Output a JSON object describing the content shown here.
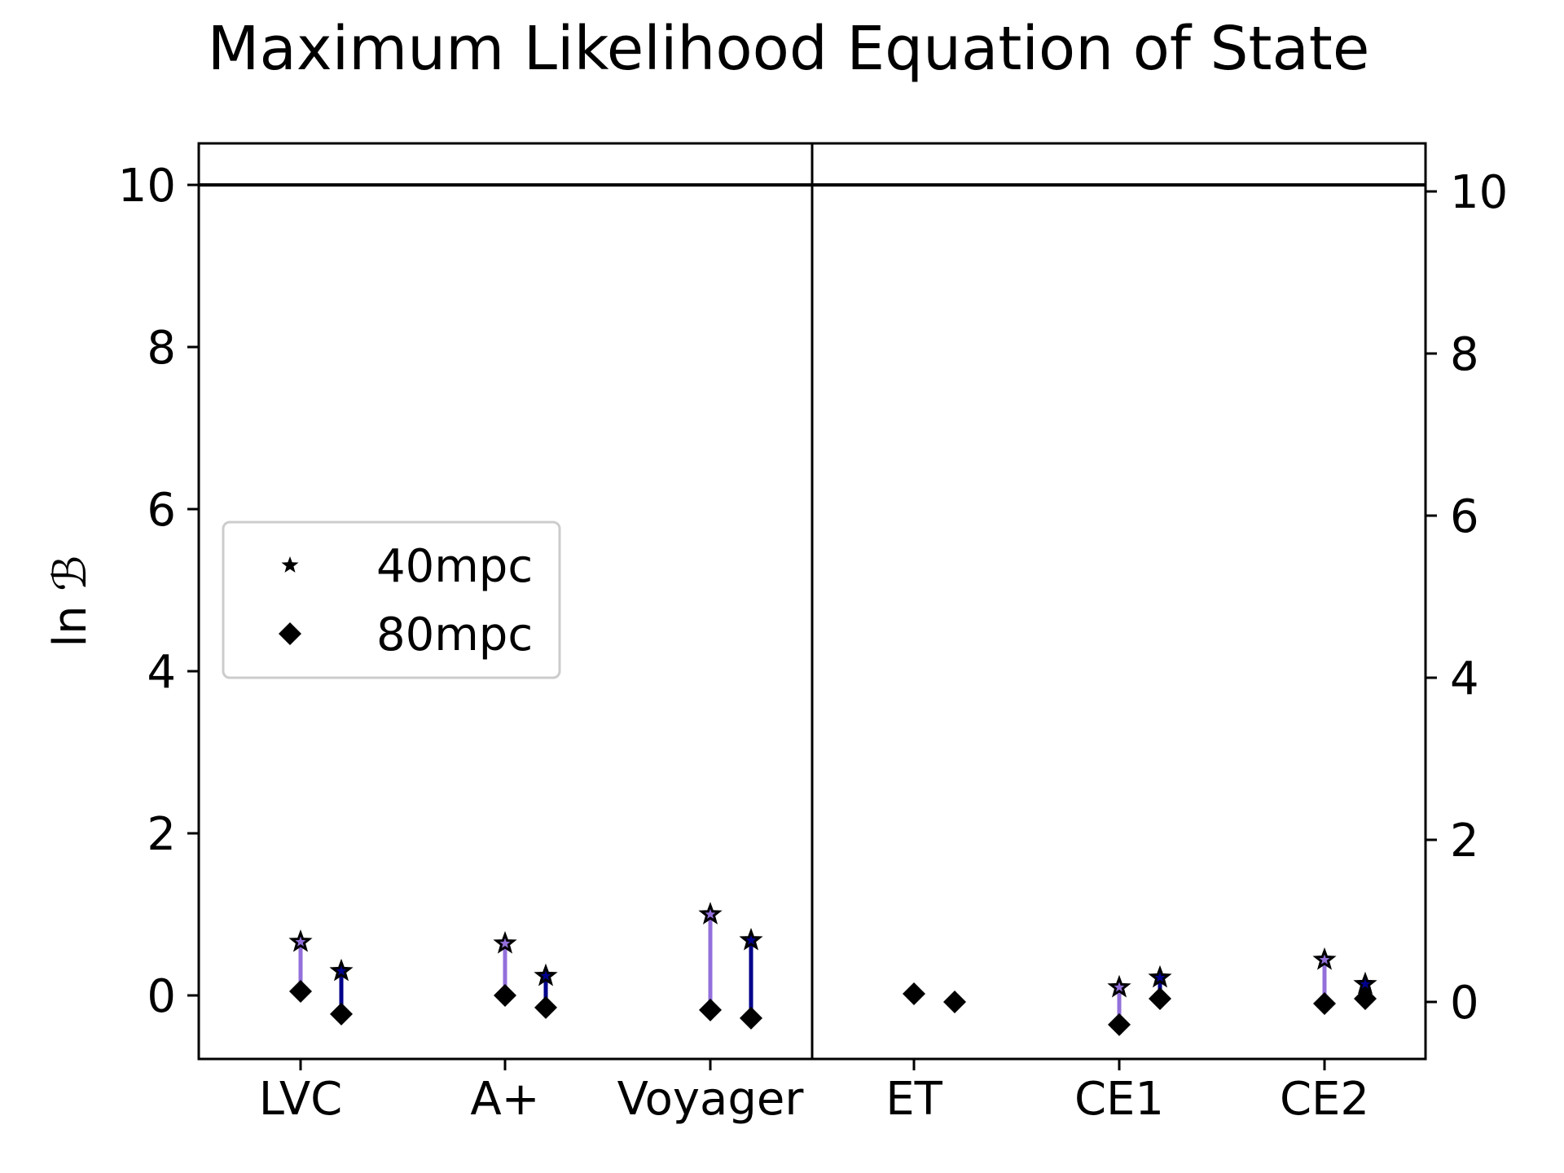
{
  "chart_data": {
    "type": "scatter",
    "title": "Maximum Likelihood Equation of State",
    "ylabel": "ln ℬ",
    "ylim": [
      -0.8,
      10.5
    ],
    "right_ylim": [
      -0.8,
      10.4
    ],
    "yticks": [
      "0",
      "2",
      "4",
      "6",
      "8",
      "10"
    ],
    "reference_line": 10,
    "categories": [
      "LVC",
      "A+",
      "Voyager",
      "ET",
      "CE1",
      "CE2"
    ],
    "panels": [
      {
        "categories": [
          "LVC",
          "A+",
          "Voyager"
        ],
        "axis": "left"
      },
      {
        "categories": [
          "ET",
          "CE1",
          "CE2"
        ],
        "axis": "right"
      }
    ],
    "series": [
      {
        "name": "40mpc",
        "marker": "star",
        "values": [
          0.66,
          0.64,
          1.0,
          null,
          0.18,
          0.52
        ]
      },
      {
        "name": "80mpc",
        "marker": "diamond",
        "values": [
          0.05,
          0.0,
          -0.18,
          0.1,
          -0.28,
          -0.02
        ]
      },
      {
        "name": "40mpc",
        "marker": "star",
        "values": [
          0.3,
          0.24,
          0.68,
          null,
          0.3,
          0.22
        ]
      },
      {
        "name": "80mpc",
        "marker": "diamond",
        "values": [
          -0.23,
          -0.15,
          -0.28,
          0.0,
          0.04,
          0.04
        ]
      }
    ],
    "segment_colors": [
      "#9370DB",
      "#00008B"
    ],
    "legend": {
      "location": "center-left",
      "items": [
        {
          "label": "40mpc",
          "marker": "star"
        },
        {
          "label": "80mpc",
          "marker": "diamond"
        }
      ]
    },
    "grid": false
  }
}
